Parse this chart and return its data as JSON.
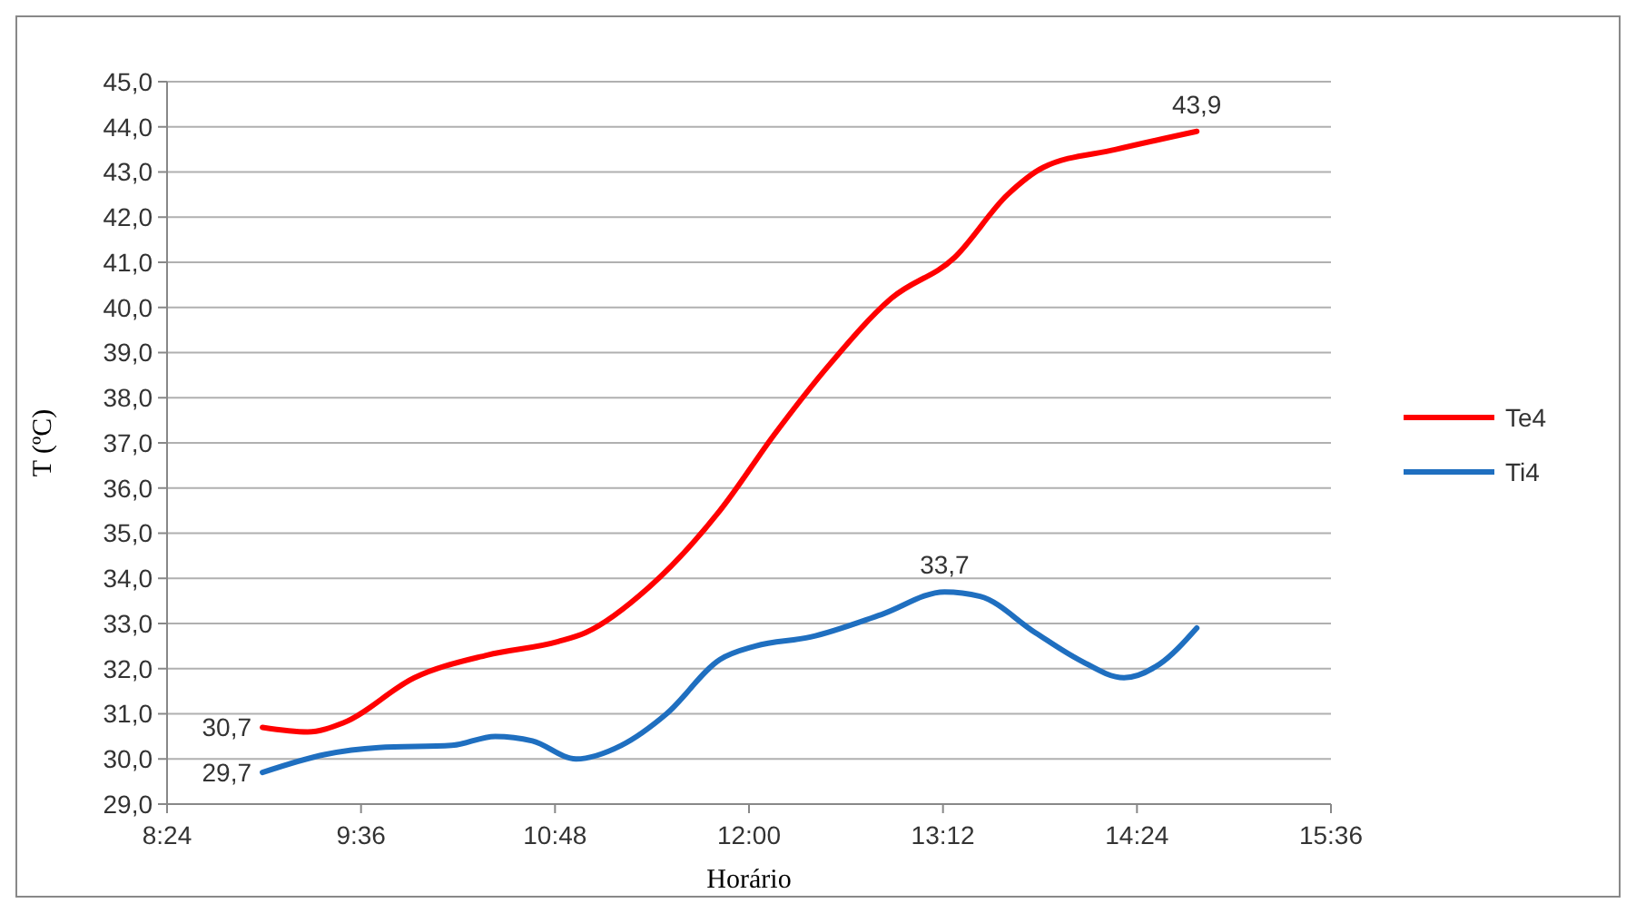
{
  "chart_data": {
    "type": "line",
    "xlabel": "Horário",
    "ylabel": "T (ºC)",
    "xlim": [
      8.4,
      15.6
    ],
    "xticks": [
      {
        "value": 8.4,
        "label": "8:24"
      },
      {
        "value": 9.6,
        "label": "9:36"
      },
      {
        "value": 10.8,
        "label": "10:48"
      },
      {
        "value": 12,
        "label": "12:00"
      },
      {
        "value": 13.2,
        "label": "13:12"
      },
      {
        "value": 14.4,
        "label": "14:24"
      },
      {
        "value": 15.6,
        "label": "15:36"
      }
    ],
    "ylim": [
      29,
      45
    ],
    "yticks": [
      {
        "value": 29,
        "label": "29,0"
      },
      {
        "value": 30,
        "label": "30,0"
      },
      {
        "value": 31,
        "label": "31,0"
      },
      {
        "value": 32,
        "label": "32,0"
      },
      {
        "value": 33,
        "label": "33,0"
      },
      {
        "value": 34,
        "label": "34,0"
      },
      {
        "value": 35,
        "label": "35,0"
      },
      {
        "value": 36,
        "label": "36,0"
      },
      {
        "value": 37,
        "label": "37,0"
      },
      {
        "value": 38,
        "label": "38,0"
      },
      {
        "value": 39,
        "label": "39,0"
      },
      {
        "value": 40,
        "label": "40,0"
      },
      {
        "value": 41,
        "label": "41,0"
      },
      {
        "value": 42,
        "label": "42,0"
      },
      {
        "value": 43,
        "label": "43,0"
      },
      {
        "value": 44,
        "label": "44,0"
      },
      {
        "value": 45,
        "label": "45,0"
      }
    ],
    "grid": "y",
    "legend": "right",
    "marker": "none",
    "line_style": "solid",
    "series": [
      {
        "name": "Te4",
        "color": "#ff0000",
        "x": [
          8.99,
          9.27,
          9.49,
          9.93,
          10.38,
          10.82,
          10.99,
          11.38,
          11.82,
          12.16,
          12.49,
          12.88,
          13.27,
          13.6,
          13.82,
          14.27,
          14.77
        ],
        "values": [
          30.7,
          30.6,
          30.8,
          31.8,
          32.3,
          32.6,
          32.8,
          33.8,
          35.5,
          37.2,
          38.7,
          40.2,
          41.1,
          42.5,
          43.1,
          43.5,
          43.9
        ]
      },
      {
        "name": "Ti4",
        "color": "#1f6fc0",
        "x": [
          8.99,
          9.38,
          9.71,
          10.16,
          10.43,
          10.66,
          10.93,
          11.21,
          11.49,
          11.82,
          12.04,
          12.38,
          12.82,
          13.21,
          13.43,
          13.77,
          14.04,
          14.32,
          14.54,
          14.77
        ],
        "values": [
          29.7,
          30.1,
          30.25,
          30.3,
          30.5,
          30.4,
          30.0,
          30.3,
          31.0,
          32.2,
          32.5,
          32.7,
          33.2,
          33.7,
          33.6,
          32.8,
          32.2,
          31.8,
          32.1,
          32.9
        ]
      }
    ],
    "annotations": [
      {
        "text": "30,7",
        "x": 8.99,
        "y": 30.7
      },
      {
        "text": "29,7",
        "x": 8.99,
        "y": 29.7
      },
      {
        "text": "33,7",
        "x": 13.21,
        "y": 33.7
      },
      {
        "text": "43,9",
        "x": 14.77,
        "y": 43.9
      }
    ]
  }
}
